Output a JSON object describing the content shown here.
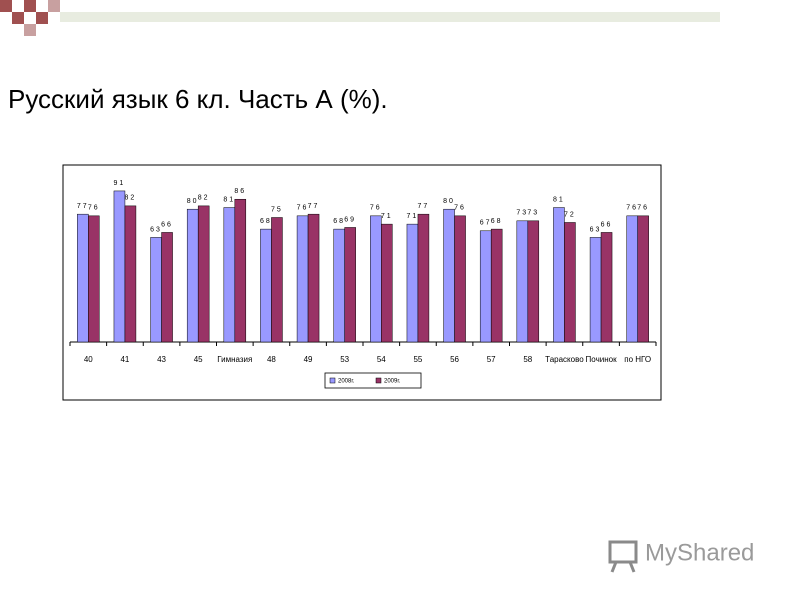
{
  "slide_title": "Русский язык 6 кл. Часть А (%).",
  "watermark": "MyShared",
  "chart_data": {
    "type": "bar",
    "categories": [
      "40",
      "41",
      "43",
      "45",
      "Гимназия",
      "48",
      "49",
      "53",
      "54",
      "55",
      "56",
      "57",
      "58",
      "Тарасково",
      "Починок",
      "по НГО"
    ],
    "series": [
      {
        "name": "2008г.",
        "color": "#9999ff",
        "values": [
          77,
          91,
          63,
          80,
          81,
          68,
          76,
          68,
          76,
          71,
          80,
          67,
          73,
          81,
          63,
          76
        ]
      },
      {
        "name": "2009г.",
        "color": "#993366",
        "values": [
          76,
          82,
          66,
          82,
          86,
          75,
          77,
          69,
          71,
          77,
          76,
          68,
          73,
          72,
          66,
          76
        ]
      }
    ],
    "ylim": [
      0,
      100
    ]
  }
}
